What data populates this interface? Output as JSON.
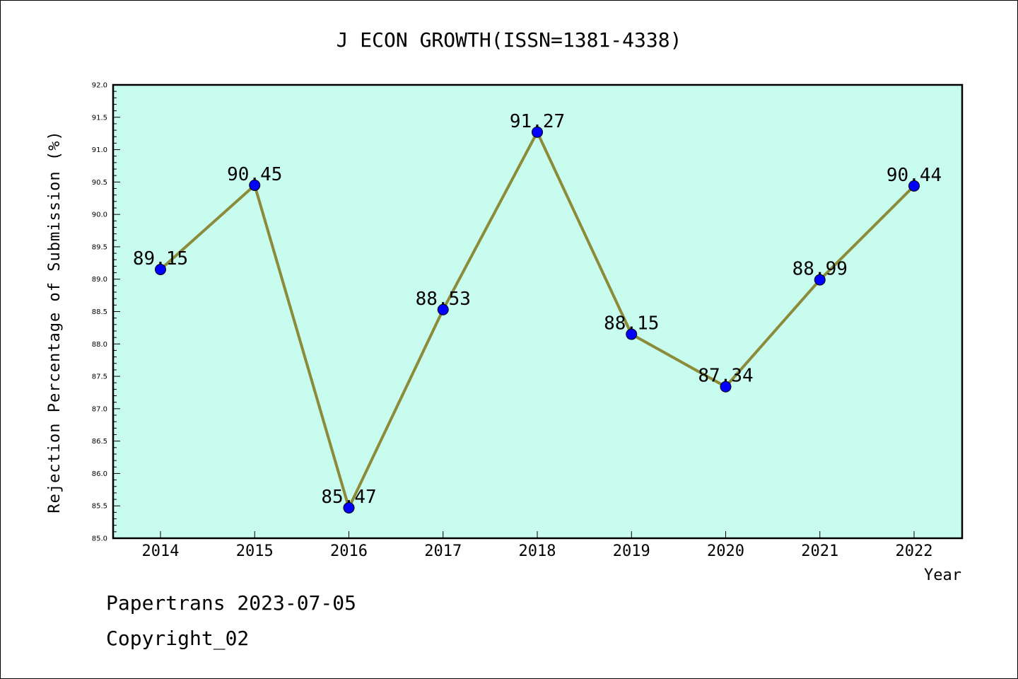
{
  "chart_data": {
    "type": "line",
    "title": "J ECON GROWTH(ISSN=1381-4338)",
    "xlabel": "Year",
    "ylabel": "Rejection Percentage of Submission (%)",
    "categories": [
      "2014",
      "2015",
      "2016",
      "2017",
      "2018",
      "2019",
      "2020",
      "2021",
      "2022"
    ],
    "values": [
      89.15,
      90.45,
      85.47,
      88.53,
      91.27,
      88.15,
      87.34,
      88.99,
      90.44
    ],
    "data_labels": [
      "89.15",
      "90.45",
      "85.47",
      "88.53",
      "91.27",
      "88.15",
      "87.34",
      "88.99",
      "90.44"
    ],
    "ylim": [
      85.0,
      92.0
    ],
    "yticks": [
      "85.0",
      "85.5",
      "86.0",
      "86.5",
      "87.0",
      "87.5",
      "88.0",
      "88.5",
      "89.0",
      "89.5",
      "90.0",
      "90.5",
      "91.0",
      "91.5",
      "92.0"
    ],
    "grid": false,
    "colors": {
      "plot_background": "#c8fcee",
      "line": "#8b8b3a",
      "marker": "#0000ff"
    }
  },
  "footer": {
    "line1": "Papertrans 2023-07-05",
    "line2": "Copyright_02"
  }
}
